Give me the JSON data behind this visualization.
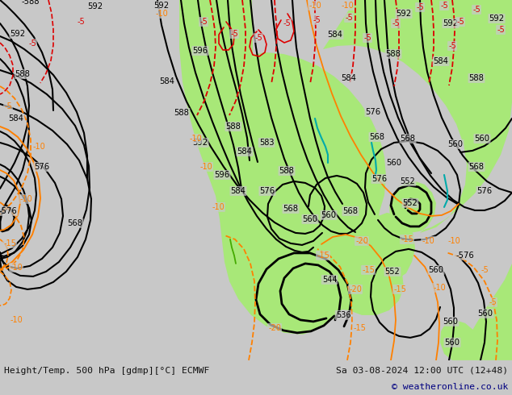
{
  "title_left": "Height/Temp. 500 hPa [gdmp][°C] ECMWF",
  "title_right": "Sa 03-08-2024 12:00 UTC (12+48)",
  "copyright": "© weatheronline.co.uk",
  "bg_color": "#c8c8c8",
  "map_bg_color": "#c8c8c8",
  "green_color": "#a8e878",
  "label_color_black": "#000000",
  "label_color_orange": "#ff8000",
  "label_color_red": "#dd0000",
  "label_color_cyan": "#00aaaa",
  "label_color_green": "#44aa00",
  "contour_black": "#000000",
  "contour_orange": "#ff8000",
  "contour_red": "#dd0000",
  "bottom_bar_color": "#d8d8d8",
  "fig_width": 6.34,
  "fig_height": 4.9,
  "dpi": 100
}
